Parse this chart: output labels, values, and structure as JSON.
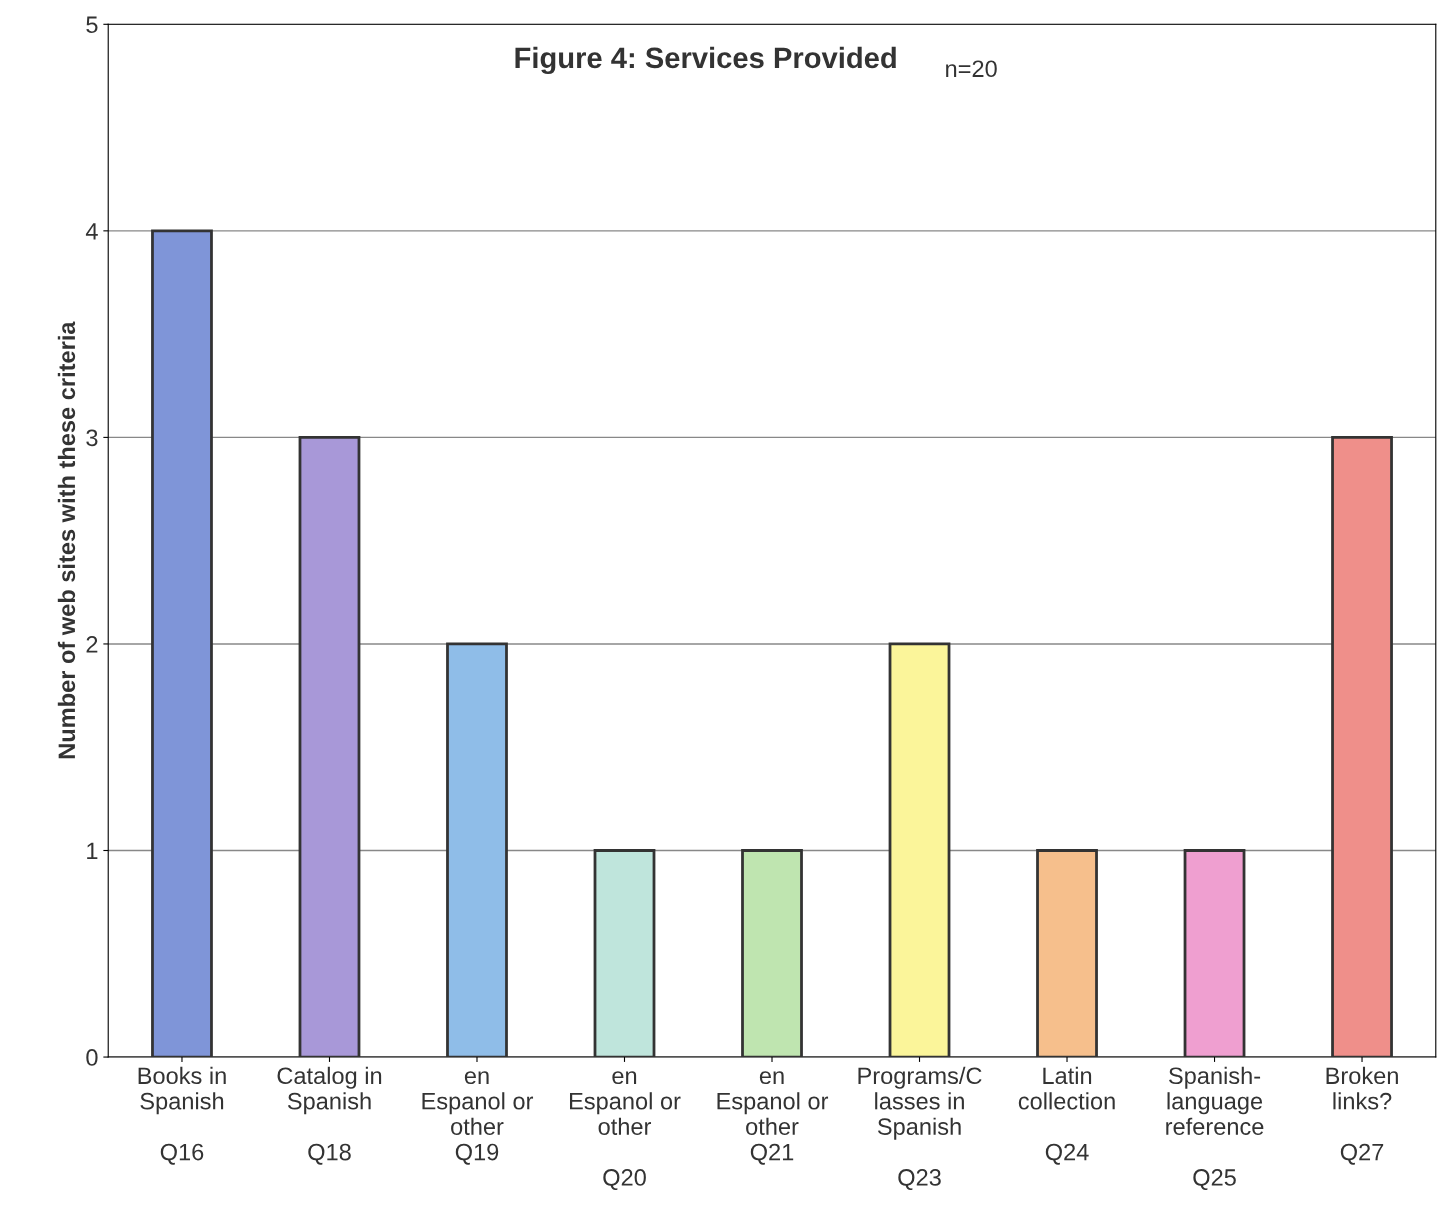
{
  "chart_data": {
    "type": "bar",
    "title": "Figure 4: Services Provided",
    "subtitle": "n=20",
    "ylabel": "Number of web sites with these criteria",
    "categories": [
      "Books in\nSpanish\n\nQ16",
      "Catalog in\nSpanish\n\nQ18",
      "en\nEspanol or\nother\nQ19",
      "en\nEspanol or\nother\n\nQ20",
      "en\nEspanol or\nother\nQ21",
      "Programs/C\nlasses in\nSpanish\n\nQ23",
      "Latin\ncollection\n\nQ24",
      "Spanish-\nlanguage\nreference\n\nQ25",
      "Broken\nlinks?\n\nQ27"
    ],
    "values": [
      4,
      3,
      2,
      1,
      1,
      2,
      1,
      1,
      3
    ],
    "colors": [
      "#7f95d8",
      "#a898d8",
      "#8fbde8",
      "#bfe5dc",
      "#bfe5b0",
      "#fbf59a",
      "#f6bf8c",
      "#ef9fd0",
      "#ef8f8a"
    ],
    "ylim": [
      0,
      5
    ],
    "yticks": [
      0,
      1,
      2,
      3,
      4,
      5
    ],
    "grid": "y"
  }
}
